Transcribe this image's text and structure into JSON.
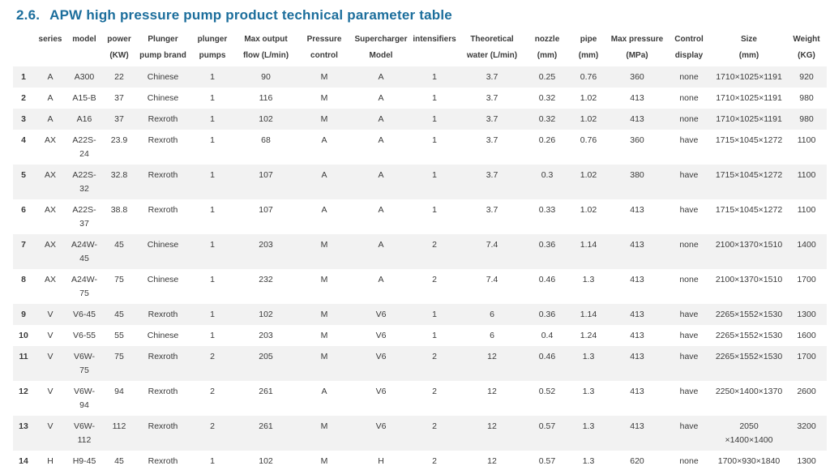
{
  "colors": {
    "title-color": "#1c6e9c",
    "text-color": "#3a3a3a",
    "stripe-color": "#f2f2f2"
  },
  "title": {
    "number": "2.6.",
    "text": "APW high pressure pump product technical parameter table"
  },
  "table": {
    "columns": [
      {
        "key": "num",
        "label": ""
      },
      {
        "key": "series",
        "label": "series"
      },
      {
        "key": "model",
        "label": "model"
      },
      {
        "key": "power",
        "label": "power\n(KW)"
      },
      {
        "key": "brand",
        "label": "Plunger\npump brand"
      },
      {
        "key": "pumps",
        "label": "plunger\npumps"
      },
      {
        "key": "flow",
        "label": "Max output\nflow (L/min)"
      },
      {
        "key": "pcontrol",
        "label": "Pressure\ncontrol"
      },
      {
        "key": "supercharger",
        "label": "Supercharger\nModel"
      },
      {
        "key": "intensifiers",
        "label": "intensifiers"
      },
      {
        "key": "water",
        "label": "Theoretical\nwater (L/min)"
      },
      {
        "key": "nozzle",
        "label": "nozzle\n(mm)"
      },
      {
        "key": "pipe",
        "label": "pipe\n(mm)"
      },
      {
        "key": "maxpressure",
        "label": "Max pressure\n(MPa)"
      },
      {
        "key": "display",
        "label": "Control\ndisplay"
      },
      {
        "key": "size",
        "label": "Size\n(mm)"
      },
      {
        "key": "weight",
        "label": "Weight\n(KG)"
      }
    ],
    "rows": [
      [
        "1",
        "A",
        "A300",
        "22",
        "Chinese",
        "1",
        "90",
        "M",
        "A",
        "1",
        "3.7",
        "0.25",
        "0.76",
        "360",
        "none",
        "1710×1025×1191",
        "920"
      ],
      [
        "2",
        "A",
        "A15-B",
        "37",
        "Chinese",
        "1",
        "116",
        "M",
        "A",
        "1",
        "3.7",
        "0.32",
        "1.02",
        "413",
        "none",
        "1710×1025×1191",
        "980"
      ],
      [
        "3",
        "A",
        "A16",
        "37",
        "Rexroth",
        "1",
        "102",
        "M",
        "A",
        "1",
        "3.7",
        "0.32",
        "1.02",
        "413",
        "none",
        "1710×1025×1191",
        "980"
      ],
      [
        "4",
        "AX",
        "A22S-\n24",
        "23.9",
        "Rexroth",
        "1",
        "68",
        "A",
        "A",
        "1",
        "3.7",
        "0.26",
        "0.76",
        "360",
        "have",
        "1715×1045×1272",
        "1100"
      ],
      [
        "5",
        "AX",
        "A22S-\n32",
        "32.8",
        "Rexroth",
        "1",
        "107",
        "A",
        "A",
        "1",
        "3.7",
        "0.3",
        "1.02",
        "380",
        "have",
        "1715×1045×1272",
        "1100"
      ],
      [
        "6",
        "AX",
        "A22S-\n37",
        "38.8",
        "Rexroth",
        "1",
        "107",
        "A",
        "A",
        "1",
        "3.7",
        "0.33",
        "1.02",
        "413",
        "have",
        "1715×1045×1272",
        "1100"
      ],
      [
        "7",
        "AX",
        "A24W-\n45",
        "45",
        "Chinese",
        "1",
        "203",
        "M",
        "A",
        "2",
        "7.4",
        "0.36",
        "1.14",
        "413",
        "none",
        "2100×1370×1510",
        "1400"
      ],
      [
        "8",
        "AX",
        "A24W-\n75",
        "75",
        "Chinese",
        "1",
        "232",
        "M",
        "A",
        "2",
        "7.4",
        "0.46",
        "1.3",
        "413",
        "none",
        "2100×1370×1510",
        "1700"
      ],
      [
        "9",
        "V",
        "V6-45",
        "45",
        "Rexroth",
        "1",
        "102",
        "M",
        "V6",
        "1",
        "6",
        "0.36",
        "1.14",
        "413",
        "have",
        "2265×1552×1530",
        "1300"
      ],
      [
        "10",
        "V",
        "V6-55",
        "55",
        "Chinese",
        "1",
        "203",
        "M",
        "V6",
        "1",
        "6",
        "0.4",
        "1.24",
        "413",
        "have",
        "2265×1552×1530",
        "1600"
      ],
      [
        "11",
        "V",
        "V6W-\n75",
        "75",
        "Rexroth",
        "2",
        "205",
        "M",
        "V6",
        "2",
        "12",
        "0.46",
        "1.3",
        "413",
        "have",
        "2265×1552×1530",
        "1700"
      ],
      [
        "12",
        "V",
        "V6W-\n94",
        "94",
        "Rexroth",
        "2",
        "261",
        "A",
        "V6",
        "2",
        "12",
        "0.52",
        "1.3",
        "413",
        "have",
        "2250×1400×1370",
        "2600"
      ],
      [
        "13",
        "V",
        "V6W-\n112",
        "112",
        "Rexroth",
        "2",
        "261",
        "M",
        "V6",
        "2",
        "12",
        "0.57",
        "1.3",
        "413",
        "have",
        "2050\n×1400×1400",
        "3200"
      ],
      [
        "14",
        "H",
        "H9-45",
        "45",
        "Rexroth",
        "1",
        "102",
        "M",
        "H",
        "2",
        "12",
        "0.57",
        "1.3",
        "620",
        "none",
        "1700×930×1840",
        "1300"
      ]
    ]
  }
}
